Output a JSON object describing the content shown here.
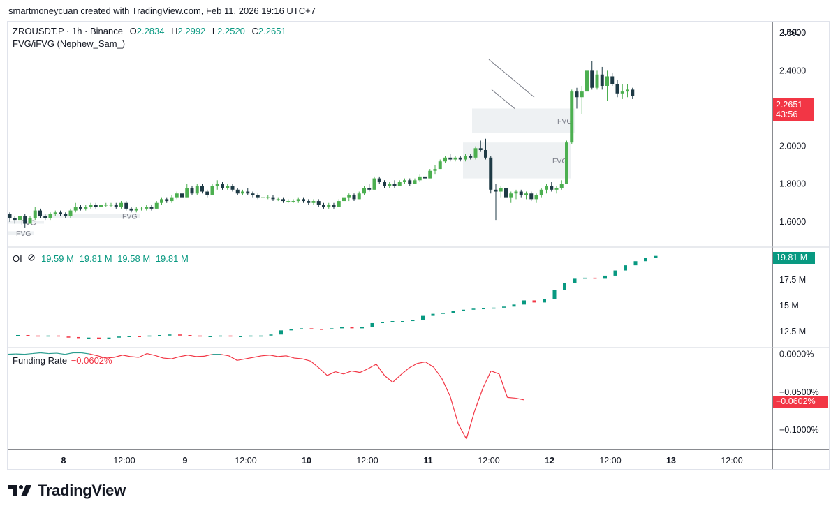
{
  "header": {
    "credit": "smartmoneycuan created with TradingView.com, Feb 11, 2026 19:16 UTC+7"
  },
  "symbol": {
    "name": "ZROUSDT.P · 1h · Binance",
    "o_label": "O",
    "o": "2.2834",
    "h_label": "H",
    "h": "2.2992",
    "l_label": "L",
    "l": "2.2520",
    "c_label": "C",
    "c": "2.2651"
  },
  "indicator": {
    "name": "FVG/iFVG (Nephew_Sam_)",
    "fvg_label": "FVG"
  },
  "currency": "USDT",
  "price_tag": {
    "value": "2.2651",
    "countdown": "43:56"
  },
  "oi_legend": {
    "label": "OI",
    "icon": "hidden-eye-icon",
    "v1": "19.59 M",
    "v2": "19.81 M",
    "v3": "19.58 M",
    "v4": "19.81 M"
  },
  "oi_tag": "19.81 M",
  "funding_legend": {
    "label": "Funding Rate",
    "value": "−0.0602%"
  },
  "funding_tag": "−0.0602%",
  "x_axis": [
    "8",
    "12:00",
    "9",
    "12:00",
    "10",
    "12:00",
    "11",
    "12:00",
    "12",
    "12:00",
    "13",
    "12:00"
  ],
  "colors": {
    "up": "#4caf50",
    "down": "#1e3a45",
    "teal": "#089981",
    "red": "#f23645",
    "line_teal": "#2a9d8f",
    "fvg_box": "#eef1f3"
  },
  "branding": "TradingView",
  "chart_data": [
    {
      "type": "candlestick",
      "title": "ZROUSDT.P · 1h · Binance",
      "ylim": [
        1.47,
        2.66
      ],
      "y_ticks": [
        "2.6000",
        "2.4000",
        "2.0000",
        "1.8000",
        "1.6000"
      ],
      "y_tick_values": [
        2.6,
        2.4,
        2.0,
        1.8,
        1.6
      ],
      "last_price": 2.2651,
      "series_note": "approximate hourly OHLC, Feb 7 to Feb 11",
      "candles": [
        [
          1.64,
          1.65,
          1.6,
          1.62
        ],
        [
          1.62,
          1.63,
          1.59,
          1.61
        ],
        [
          1.61,
          1.64,
          1.6,
          1.63
        ],
        [
          1.63,
          1.64,
          1.57,
          1.59
        ],
        [
          1.59,
          1.63,
          1.59,
          1.62
        ],
        [
          1.62,
          1.68,
          1.61,
          1.66
        ],
        [
          1.66,
          1.67,
          1.62,
          1.63
        ],
        [
          1.63,
          1.64,
          1.61,
          1.62
        ],
        [
          1.62,
          1.65,
          1.61,
          1.64
        ],
        [
          1.64,
          1.66,
          1.63,
          1.65
        ],
        [
          1.65,
          1.66,
          1.63,
          1.64
        ],
        [
          1.64,
          1.65,
          1.62,
          1.63
        ],
        [
          1.63,
          1.67,
          1.62,
          1.66
        ],
        [
          1.66,
          1.7,
          1.65,
          1.68
        ],
        [
          1.68,
          1.69,
          1.66,
          1.67
        ],
        [
          1.67,
          1.69,
          1.66,
          1.68
        ],
        [
          1.68,
          1.7,
          1.67,
          1.69
        ],
        [
          1.69,
          1.7,
          1.67,
          1.68
        ],
        [
          1.68,
          1.7,
          1.68,
          1.69
        ],
        [
          1.69,
          1.7,
          1.68,
          1.69
        ],
        [
          1.69,
          1.7,
          1.68,
          1.69
        ],
        [
          1.69,
          1.7,
          1.67,
          1.68
        ],
        [
          1.68,
          1.71,
          1.67,
          1.7
        ],
        [
          1.7,
          1.71,
          1.66,
          1.67
        ],
        [
          1.67,
          1.68,
          1.65,
          1.66
        ],
        [
          1.66,
          1.68,
          1.65,
          1.67
        ],
        [
          1.67,
          1.68,
          1.66,
          1.67
        ],
        [
          1.67,
          1.69,
          1.66,
          1.68
        ],
        [
          1.68,
          1.69,
          1.66,
          1.67
        ],
        [
          1.67,
          1.71,
          1.67,
          1.7
        ],
        [
          1.7,
          1.73,
          1.69,
          1.72
        ],
        [
          1.72,
          1.73,
          1.7,
          1.71
        ],
        [
          1.71,
          1.74,
          1.7,
          1.73
        ],
        [
          1.73,
          1.76,
          1.72,
          1.75
        ],
        [
          1.75,
          1.76,
          1.72,
          1.73
        ],
        [
          1.73,
          1.8,
          1.73,
          1.78
        ],
        [
          1.78,
          1.79,
          1.74,
          1.75
        ],
        [
          1.75,
          1.8,
          1.74,
          1.79
        ],
        [
          1.79,
          1.8,
          1.75,
          1.76
        ],
        [
          1.76,
          1.77,
          1.73,
          1.74
        ],
        [
          1.74,
          1.8,
          1.74,
          1.79
        ],
        [
          1.79,
          1.82,
          1.77,
          1.8
        ],
        [
          1.8,
          1.81,
          1.77,
          1.78
        ],
        [
          1.78,
          1.8,
          1.77,
          1.79
        ],
        [
          1.79,
          1.8,
          1.76,
          1.77
        ],
        [
          1.77,
          1.78,
          1.74,
          1.75
        ],
        [
          1.75,
          1.77,
          1.74,
          1.76
        ],
        [
          1.76,
          1.78,
          1.74,
          1.75
        ],
        [
          1.75,
          1.76,
          1.73,
          1.74
        ],
        [
          1.74,
          1.75,
          1.72,
          1.73
        ],
        [
          1.73,
          1.74,
          1.72,
          1.73
        ],
        [
          1.73,
          1.74,
          1.72,
          1.73
        ],
        [
          1.73,
          1.74,
          1.71,
          1.72
        ],
        [
          1.72,
          1.73,
          1.71,
          1.72
        ],
        [
          1.72,
          1.73,
          1.7,
          1.71
        ],
        [
          1.71,
          1.72,
          1.7,
          1.71
        ],
        [
          1.71,
          1.72,
          1.7,
          1.71
        ],
        [
          1.71,
          1.73,
          1.7,
          1.72
        ],
        [
          1.72,
          1.73,
          1.7,
          1.71
        ],
        [
          1.71,
          1.72,
          1.69,
          1.7
        ],
        [
          1.7,
          1.72,
          1.69,
          1.71
        ],
        [
          1.71,
          1.72,
          1.68,
          1.69
        ],
        [
          1.69,
          1.7,
          1.67,
          1.68
        ],
        [
          1.68,
          1.7,
          1.67,
          1.69
        ],
        [
          1.69,
          1.7,
          1.67,
          1.68
        ],
        [
          1.68,
          1.72,
          1.68,
          1.71
        ],
        [
          1.71,
          1.74,
          1.7,
          1.73
        ],
        [
          1.73,
          1.75,
          1.71,
          1.74
        ],
        [
          1.74,
          1.75,
          1.71,
          1.72
        ],
        [
          1.72,
          1.76,
          1.72,
          1.75
        ],
        [
          1.75,
          1.79,
          1.74,
          1.78
        ],
        [
          1.78,
          1.8,
          1.76,
          1.77
        ],
        [
          1.77,
          1.84,
          1.77,
          1.83
        ],
        [
          1.83,
          1.84,
          1.8,
          1.81
        ],
        [
          1.81,
          1.82,
          1.78,
          1.79
        ],
        [
          1.79,
          1.81,
          1.78,
          1.8
        ],
        [
          1.8,
          1.82,
          1.78,
          1.79
        ],
        [
          1.79,
          1.82,
          1.79,
          1.81
        ],
        [
          1.81,
          1.83,
          1.8,
          1.82
        ],
        [
          1.82,
          1.83,
          1.79,
          1.8
        ],
        [
          1.8,
          1.83,
          1.8,
          1.82
        ],
        [
          1.82,
          1.85,
          1.81,
          1.84
        ],
        [
          1.84,
          1.86,
          1.82,
          1.83
        ],
        [
          1.83,
          1.88,
          1.83,
          1.87
        ],
        [
          1.87,
          1.9,
          1.85,
          1.88
        ],
        [
          1.88,
          1.93,
          1.88,
          1.92
        ],
        [
          1.92,
          1.95,
          1.91,
          1.94
        ],
        [
          1.94,
          1.96,
          1.92,
          1.93
        ],
        [
          1.93,
          1.95,
          1.92,
          1.94
        ],
        [
          1.94,
          1.95,
          1.92,
          1.93
        ],
        [
          1.93,
          1.96,
          1.92,
          1.95
        ],
        [
          1.95,
          1.96,
          1.93,
          1.94
        ],
        [
          1.94,
          2.0,
          1.93,
          1.99
        ],
        [
          1.99,
          2.03,
          1.97,
          1.98
        ],
        [
          1.98,
          2.04,
          1.93,
          1.94
        ],
        [
          1.94,
          1.95,
          1.75,
          1.77
        ],
        [
          1.77,
          1.8,
          1.61,
          1.76
        ],
        [
          1.76,
          1.79,
          1.73,
          1.78
        ],
        [
          1.78,
          1.8,
          1.72,
          1.73
        ],
        [
          1.73,
          1.76,
          1.7,
          1.75
        ],
        [
          1.75,
          1.77,
          1.72,
          1.76
        ],
        [
          1.76,
          1.77,
          1.73,
          1.74
        ],
        [
          1.74,
          1.76,
          1.72,
          1.75
        ],
        [
          1.75,
          1.76,
          1.71,
          1.72
        ],
        [
          1.72,
          1.75,
          1.7,
          1.74
        ],
        [
          1.74,
          1.78,
          1.73,
          1.77
        ],
        [
          1.77,
          1.8,
          1.75,
          1.79
        ],
        [
          1.79,
          1.81,
          1.76,
          1.77
        ],
        [
          1.77,
          1.79,
          1.75,
          1.78
        ],
        [
          1.78,
          1.82,
          1.77,
          1.8
        ],
        [
          1.8,
          2.03,
          1.8,
          2.02
        ],
        [
          2.02,
          2.3,
          2.01,
          2.29
        ],
        [
          2.29,
          2.31,
          2.2,
          2.26
        ],
        [
          2.26,
          2.32,
          2.17,
          2.29
        ],
        [
          2.29,
          2.41,
          2.28,
          2.4
        ],
        [
          2.4,
          2.45,
          2.3,
          2.31
        ],
        [
          2.31,
          2.4,
          2.3,
          2.38
        ],
        [
          2.38,
          2.42,
          2.3,
          2.32
        ],
        [
          2.32,
          2.4,
          2.24,
          2.37
        ],
        [
          2.37,
          2.39,
          2.32,
          2.33
        ],
        [
          2.33,
          2.35,
          2.26,
          2.28
        ],
        [
          2.28,
          2.33,
          2.25,
          2.29
        ],
        [
          2.29,
          2.33,
          2.26,
          2.3
        ],
        [
          2.3,
          2.31,
          2.25,
          2.2651
        ]
      ],
      "fvg_zones": [
        {
          "low": 2.07,
          "high": 2.2,
          "label": "FVG"
        },
        {
          "low": 1.83,
          "high": 2.02,
          "label": "FVG"
        },
        {
          "low": 1.62,
          "high": 1.64,
          "label": "FVG"
        },
        {
          "low": 1.59,
          "high": 1.605,
          "label": "FVG"
        },
        {
          "low": 1.53,
          "high": 1.55,
          "label": "FVG"
        }
      ],
      "trendlines": [
        {
          "from": [
            0,
            2.46
          ],
          "to": [
            14,
            2.26
          ]
        },
        {
          "from": [
            0,
            2.3
          ],
          "to": [
            8,
            2.2
          ]
        }
      ]
    },
    {
      "type": "candlestick",
      "title": "OI",
      "ylim": [
        11.0,
        20.6
      ],
      "y_ticks": [
        "17.5 M",
        "15 M",
        "12.5 M"
      ],
      "y_tick_values": [
        17.5,
        15,
        12.5
      ],
      "units": "M",
      "last_value": 19.81,
      "series_note": "open interest sampled every 2 hours",
      "points": [
        12.1,
        12.15,
        12.1,
        12.05,
        12.1,
        12.0,
        11.95,
        11.9,
        11.9,
        11.85,
        11.9,
        12.0,
        12.05,
        12.0,
        12.1,
        12.15,
        12.2,
        12.15,
        12.1,
        12.0,
        12.05,
        12.1,
        12.0,
        12.05,
        12.1,
        12.1,
        12.2,
        12.6,
        12.7,
        12.8,
        12.75,
        12.7,
        12.8,
        12.9,
        12.85,
        12.9,
        13.3,
        13.4,
        13.5,
        13.5,
        13.6,
        14.0,
        14.2,
        14.3,
        14.5,
        14.6,
        14.7,
        14.75,
        14.8,
        14.9,
        15.1,
        15.5,
        15.3,
        15.6,
        16.5,
        17.2,
        17.6,
        17.7,
        17.6,
        17.9,
        18.4,
        18.9,
        19.3,
        19.6,
        19.81
      ]
    },
    {
      "type": "line",
      "title": "Funding Rate",
      "ylim": [
        -0.125,
        0.008
      ],
      "y_ticks": [
        "0.0000%",
        "−0.0500%",
        "−0.1000%"
      ],
      "y_tick_values": [
        0.0,
        -0.05,
        -0.1
      ],
      "units": "%",
      "last_value": -0.0602,
      "points": [
        0.0,
        0.0005,
        0.0,
        0.001,
        0.002,
        0.001,
        0.0015,
        0.0,
        0.002,
        0.002,
        0.0005,
        -0.002,
        -0.005,
        -0.004,
        -0.001,
        -0.003,
        -0.004,
        0.001,
        -0.0015,
        -0.005,
        -0.006,
        -0.003,
        -0.001,
        -0.003,
        -0.0025,
        0.0,
        0.0,
        -0.002,
        -0.008,
        -0.006,
        -0.004,
        -0.002,
        -0.001,
        -0.003,
        -0.002,
        -0.005,
        -0.006,
        -0.009,
        -0.018,
        -0.028,
        -0.023,
        -0.026,
        -0.022,
        -0.024,
        -0.019,
        -0.013,
        -0.028,
        -0.037,
        -0.027,
        -0.018,
        -0.012,
        -0.01,
        -0.017,
        -0.032,
        -0.055,
        -0.092,
        -0.112,
        -0.075,
        -0.045,
        -0.022,
        -0.026,
        -0.057,
        -0.058,
        -0.0602
      ]
    }
  ]
}
